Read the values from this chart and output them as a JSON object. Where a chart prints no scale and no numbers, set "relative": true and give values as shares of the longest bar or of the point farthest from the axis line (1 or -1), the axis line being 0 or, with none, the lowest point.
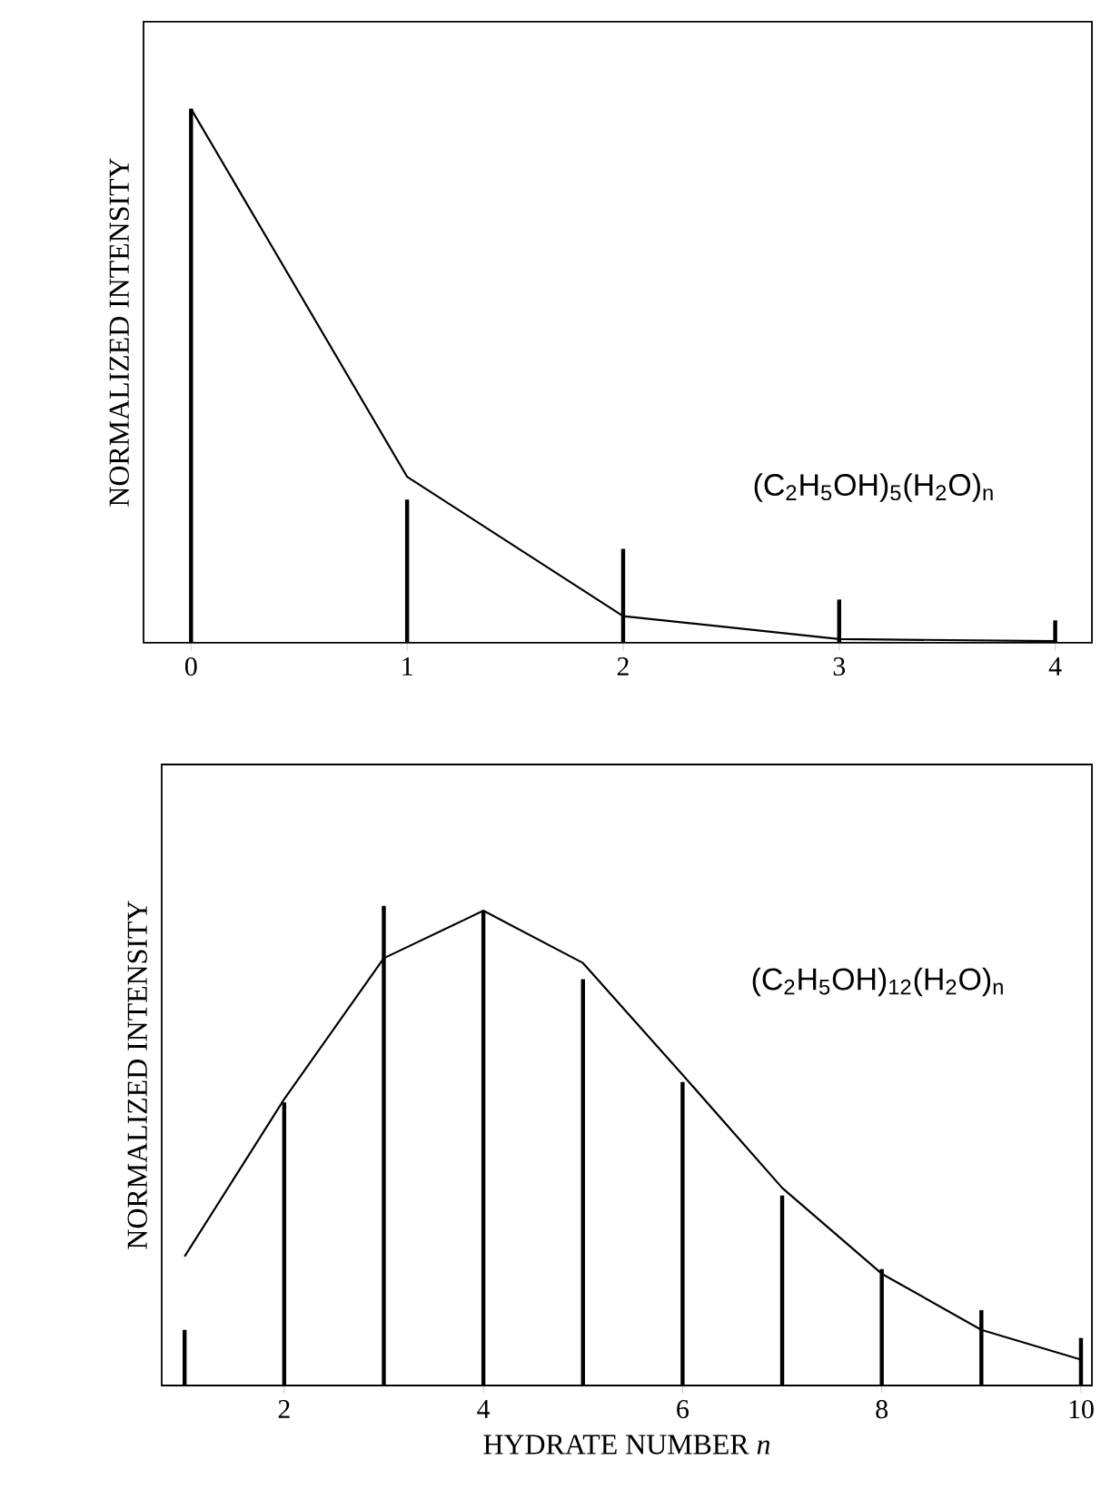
{
  "chart_data": [
    {
      "type": "bar",
      "relative": true,
      "ylabel": "NORMALIZED INTENSITY",
      "x": [
        0,
        1,
        2,
        3,
        4
      ],
      "xlim": [
        -0.22,
        4.17
      ],
      "xticks": [
        0,
        1,
        2,
        3,
        4
      ],
      "annotations": [
        "(C$_{2}$H$_{5}$OH)$_{5}$(H$_{2}$O)$_{n}$"
      ],
      "series": [
        {
          "color": "#000000",
          "values": [
            1.0,
            0.268,
            0.176,
            0.081,
            0.042
          ]
        },
        {
          "type": "line",
          "color": "#000000",
          "values": [
            1.0,
            0.311,
            0.05,
            0.007,
            0.003
          ]
        }
      ]
    },
    {
      "type": "bar",
      "relative": true,
      "ylabel": "NORMALIZED INTENSITY",
      "xlabel": "HYDRATE NUMBER *n*",
      "x": [
        1,
        2,
        3,
        4,
        5,
        6,
        7,
        8,
        9,
        10
      ],
      "xlim": [
        0.77,
        10.11
      ],
      "xticks": [
        2,
        4,
        6,
        8,
        10
      ],
      "annotations": [
        "(C$_{2}$H$_{5}$OH)$_{12}$(H$_{2}$O)$_{n}$"
      ],
      "series": [
        {
          "color": "#000000",
          "values": [
            0.116,
            0.59,
            1.0,
            0.99,
            0.847,
            0.633,
            0.396,
            0.243,
            0.157,
            0.099
          ]
        },
        {
          "type": "line",
          "color": "#000000",
          "values": [
            0.269,
            0.597,
            0.891,
            0.99,
            0.881,
            0.648,
            0.412,
            0.233,
            0.116,
            0.054
          ]
        }
      ]
    }
  ]
}
